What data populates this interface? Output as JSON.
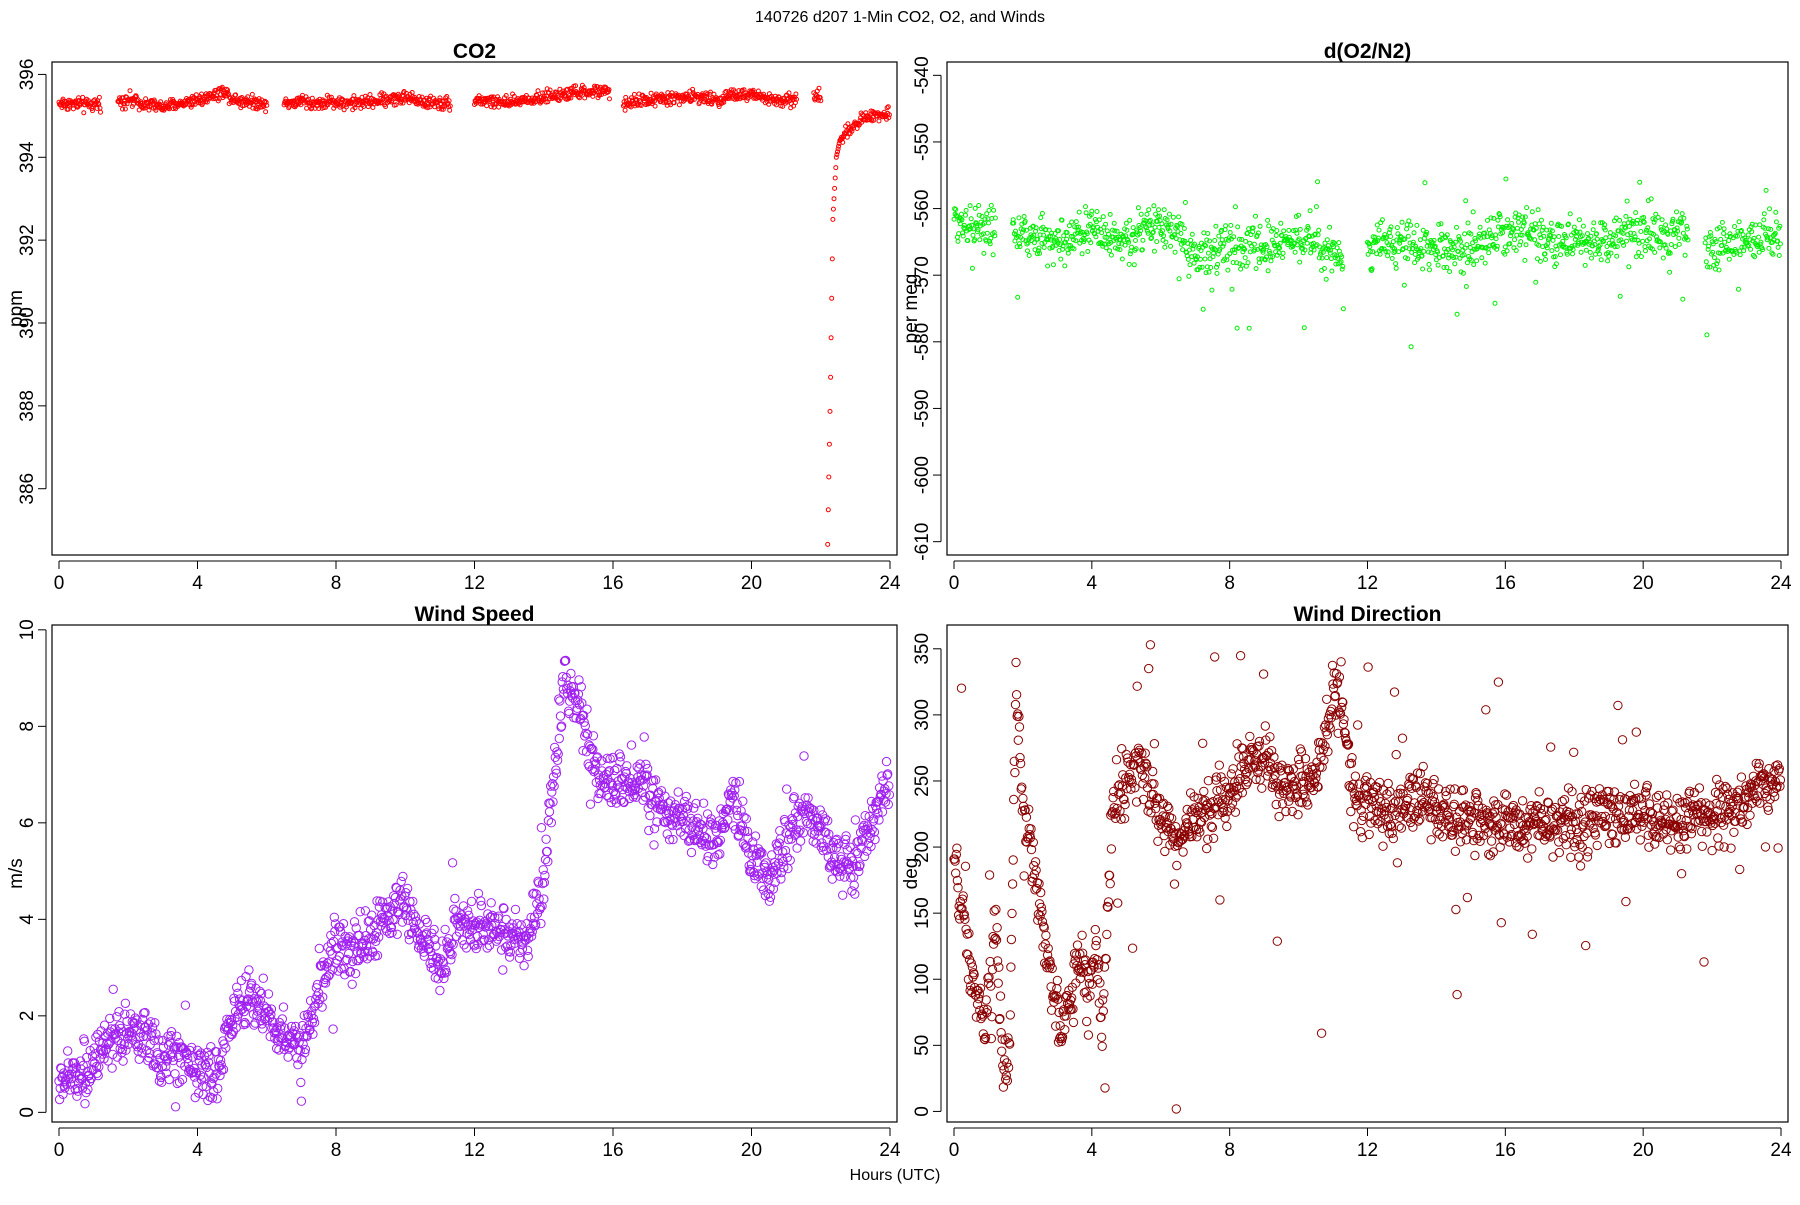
{
  "figure": {
    "title": "140726   d207   1-Min CO2, O2, and Winds",
    "xlabel": "Hours (UTC)"
  },
  "chart_data": [
    {
      "type": "scatter",
      "title": "CO2",
      "xlabel": "",
      "ylabel": "ppm",
      "xlim": [
        0,
        24
      ],
      "ylim": [
        384.4,
        396.3
      ],
      "xticks": [
        0,
        4,
        8,
        12,
        16,
        20,
        24
      ],
      "yticks": [
        386,
        388,
        390,
        392,
        394,
        396
      ],
      "color": "#ff0000",
      "marker_radius": 2.0,
      "gaps": [
        [
          1.2,
          1.7
        ],
        [
          6.0,
          6.5
        ],
        [
          11.3,
          12.0
        ],
        [
          15.9,
          16.3
        ],
        [
          21.3,
          21.8
        ],
        [
          22.0,
          22.2
        ]
      ],
      "series": [
        {
          "x": [
            0.3,
            1.0,
            1.2,
            2.0,
            2.5,
            3.0,
            3.5,
            4.0,
            4.5,
            4.8,
            5.0,
            5.5,
            6.0,
            6.5,
            7.0,
            7.5,
            8.0,
            8.5,
            9.0,
            9.5,
            10.0,
            10.5,
            11.0,
            11.3,
            12.0,
            12.5,
            13.0,
            13.5,
            14.0,
            14.5,
            15.0,
            15.5,
            15.9,
            16.3,
            16.7,
            17.0,
            17.5,
            18.0,
            18.5,
            19.0,
            19.5,
            20.0,
            20.5,
            21.0,
            21.3,
            21.8,
            22.0,
            22.2,
            22.28,
            22.35,
            22.45,
            22.55,
            22.7,
            23.0,
            23.3,
            23.6,
            24.0
          ],
          "y": [
            395.3,
            395.25,
            395.3,
            395.4,
            395.3,
            395.2,
            395.3,
            395.4,
            395.5,
            395.6,
            395.4,
            395.35,
            395.3,
            395.3,
            395.35,
            395.3,
            395.35,
            395.3,
            395.35,
            395.4,
            395.45,
            395.35,
            395.3,
            395.3,
            395.4,
            395.35,
            395.3,
            395.4,
            395.45,
            395.5,
            395.55,
            395.6,
            395.55,
            395.3,
            395.35,
            395.4,
            395.4,
            395.45,
            395.45,
            395.4,
            395.5,
            395.5,
            395.4,
            395.35,
            395.4,
            395.5,
            395.45,
            384.7,
            388.5,
            392.5,
            394.0,
            394.4,
            394.6,
            394.8,
            394.95,
            395.05,
            395.05
          ]
        }
      ]
    },
    {
      "type": "scatter",
      "title": "d(O2/N2)",
      "xlabel": "",
      "ylabel": "per meg",
      "xlim": [
        0,
        24
      ],
      "ylim": [
        -612,
        -538
      ],
      "xticks": [
        0,
        4,
        8,
        12,
        16,
        20,
        24
      ],
      "yticks": [
        -610,
        -600,
        -590,
        -580,
        -570,
        -560,
        -550,
        -540
      ],
      "color": "#00ee00",
      "marker_radius": 2.0,
      "gaps": [
        [
          1.2,
          1.7
        ],
        [
          11.3,
          12.0
        ],
        [
          21.3,
          21.8
        ]
      ],
      "series": [
        {
          "x": [
            0.3,
            1.0,
            1.2,
            2.0,
            3.0,
            4.0,
            5.0,
            6.0,
            7.0,
            8.0,
            9.0,
            10.0,
            11.0,
            11.3,
            12.0,
            13.0,
            14.0,
            15.0,
            15.9,
            16.5,
            17.5,
            18.5,
            19.5,
            20.5,
            21.3,
            21.8,
            23.0,
            24.0
          ],
          "y": [
            -562,
            -563,
            -563,
            -564,
            -565,
            -563,
            -565,
            -562,
            -567,
            -566,
            -566,
            -564,
            -567,
            -567,
            -566,
            -565,
            -566,
            -566,
            -564,
            -563,
            -565,
            -565,
            -564,
            -564,
            -563,
            -566,
            -565,
            -564
          ]
        }
      ]
    },
    {
      "type": "scatter",
      "title": "Wind Speed",
      "xlabel": "",
      "ylabel": "m/s",
      "xlim": [
        0,
        24
      ],
      "ylim": [
        -0.2,
        10.1
      ],
      "xticks": [
        0,
        4,
        8,
        12,
        16,
        20,
        24
      ],
      "yticks": [
        0,
        2,
        4,
        6,
        8,
        10
      ],
      "color": "#a020f0",
      "marker_radius": 4.2,
      "gaps": [],
      "series": [
        {
          "x": [
            0,
            0.5,
            1.0,
            1.5,
            2.0,
            2.5,
            3.0,
            3.5,
            4.0,
            4.5,
            5.0,
            5.5,
            6.0,
            6.5,
            7.0,
            7.5,
            8.0,
            8.5,
            9.0,
            9.5,
            10.0,
            10.5,
            11.0,
            11.5,
            12.0,
            12.5,
            13.0,
            13.5,
            14.0,
            14.3,
            14.6,
            15.0,
            15.5,
            16.0,
            16.5,
            17.0,
            17.5,
            18.0,
            18.5,
            19.0,
            19.5,
            20.0,
            20.5,
            21.0,
            21.5,
            22.0,
            22.5,
            23.0,
            23.5,
            24.0
          ],
          "y": [
            0.6,
            0.8,
            1.0,
            1.3,
            1.8,
            1.5,
            1.1,
            1.2,
            0.9,
            0.7,
            2.0,
            2.4,
            2.1,
            1.6,
            1.3,
            2.5,
            3.5,
            3.2,
            3.6,
            4.1,
            4.4,
            3.6,
            3.0,
            3.9,
            3.9,
            3.8,
            3.7,
            3.5,
            4.6,
            7.0,
            9.0,
            8.4,
            7.0,
            6.8,
            6.9,
            6.7,
            6.2,
            6.1,
            5.8,
            5.6,
            6.7,
            5.2,
            4.7,
            5.6,
            6.3,
            5.9,
            5.2,
            5.1,
            6.0,
            6.9
          ]
        }
      ]
    },
    {
      "type": "scatter",
      "title": "Wind Direction",
      "xlabel": "",
      "ylabel": "deg",
      "xlim": [
        0,
        24
      ],
      "ylim": [
        -8,
        368
      ],
      "xticks": [
        0,
        4,
        8,
        12,
        16,
        20,
        24
      ],
      "yticks": [
        0,
        50,
        100,
        150,
        200,
        250,
        300,
        350
      ],
      "color": "#8b0000",
      "marker_radius": 4.2,
      "gaps": [],
      "series": [
        {
          "x": [
            0,
            0.3,
            0.6,
            0.9,
            1.2,
            1.4,
            1.6,
            1.8,
            2.0,
            2.2,
            2.5,
            2.8,
            3.1,
            3.4,
            3.7,
            3.9,
            4.1,
            4.3,
            4.6,
            5.0,
            5.5,
            6.0,
            6.5,
            7.0,
            7.5,
            8.0,
            8.5,
            9.0,
            9.5,
            10.0,
            10.5,
            10.8,
            11.0,
            11.3,
            11.6,
            12.0,
            12.5,
            13.0,
            13.5,
            14.0,
            14.5,
            15.0,
            15.5,
            16.0,
            16.5,
            17.0,
            17.5,
            18.0,
            18.5,
            19.0,
            19.5,
            20.0,
            20.5,
            21.0,
            21.5,
            22.0,
            22.5,
            23.0,
            23.5,
            24.0
          ],
          "y": [
            190,
            140,
            90,
            60,
            150,
            40,
            30,
            320,
            230,
            210,
            150,
            110,
            60,
            90,
            120,
            80,
            130,
            60,
            230,
            250,
            260,
            220,
            210,
            220,
            230,
            240,
            260,
            270,
            250,
            240,
            250,
            290,
            320,
            300,
            240,
            235,
            225,
            230,
            240,
            225,
            220,
            222,
            220,
            218,
            215,
            220,
            218,
            220,
            222,
            225,
            222,
            222,
            220,
            222,
            220,
            220,
            228,
            235,
            250,
            255
          ]
        }
      ]
    }
  ]
}
